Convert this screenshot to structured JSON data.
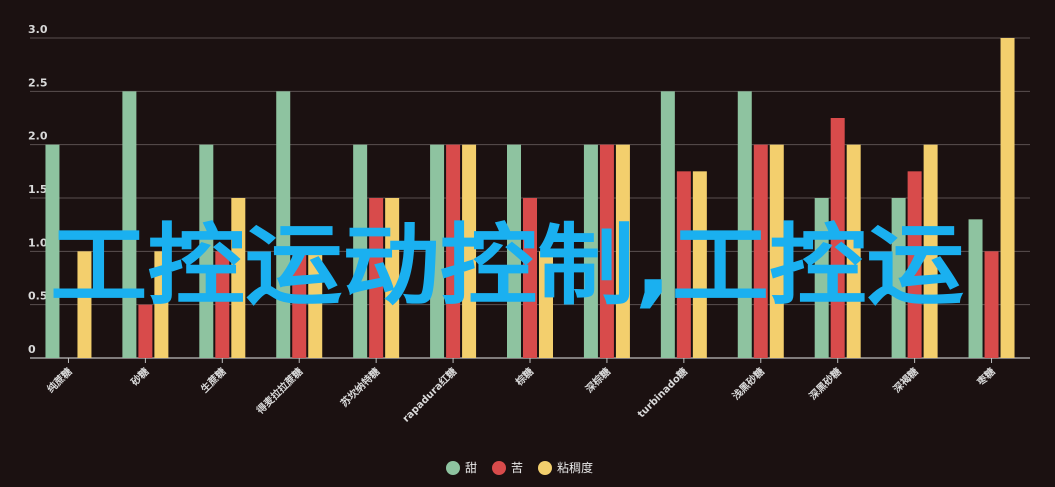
{
  "chart_data": {
    "type": "bar",
    "categories": [
      "纯蔗糖",
      "砂糖",
      "生蔗糖",
      "得麦拉拉蔗糖",
      "苏坎纳特糖",
      "rapadura红糖",
      "棕糖",
      "深棕糖",
      "turbinado糖",
      "浅黑砂糖",
      "深黑砂糖",
      "深褐糖",
      "枣糖"
    ],
    "series": [
      {
        "name": "甜",
        "color": "#8ec3a0",
        "values": [
          2,
          2.5,
          2,
          2.5,
          2,
          2,
          2,
          2,
          2.5,
          2.5,
          1.5,
          1.5,
          1.3
        ]
      },
      {
        "name": "苦",
        "color": "#d84b4b",
        "values": [
          0,
          0.5,
          1,
          1,
          1.5,
          2,
          1.5,
          2,
          1.75,
          2,
          2.25,
          1.75,
          1
        ]
      },
      {
        "name": "粘稠度",
        "color": "#f3cf6d",
        "values": [
          1,
          1,
          1.5,
          1,
          1.5,
          2,
          1,
          2,
          1.75,
          2,
          2,
          2,
          3
        ]
      }
    ],
    "yticks": [
      "0",
      "0.5",
      "1.0",
      "1.5",
      "2.0",
      "2.5",
      "3.0"
    ],
    "ylim": [
      0,
      3
    ],
    "grid": true,
    "legend_position": "bottom-center"
  },
  "overlay_text": "工控运动控制,工控运"
}
